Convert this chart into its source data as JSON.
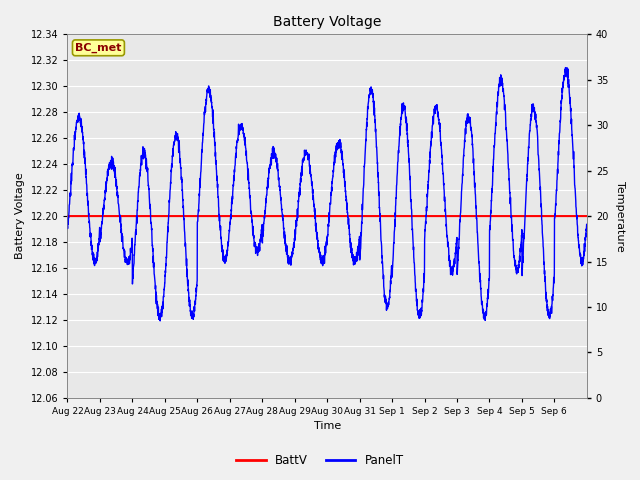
{
  "title": "Battery Voltage",
  "xlabel": "Time",
  "ylabel_left": "Battery Voltage",
  "ylabel_right": "Temperature",
  "annotation_text": "BC_met",
  "ylim_left": [
    12.06,
    12.34
  ],
  "ylim_right": [
    0,
    40
  ],
  "yticks_left": [
    12.06,
    12.08,
    12.1,
    12.12,
    12.14,
    12.16,
    12.18,
    12.2,
    12.22,
    12.24,
    12.26,
    12.28,
    12.3,
    12.32,
    12.34
  ],
  "yticks_right": [
    0,
    5,
    10,
    15,
    20,
    25,
    30,
    35,
    40
  ],
  "batt_v": 12.2,
  "bg_color": "#e8e8e8",
  "fig_bg_color": "#f0f0f0",
  "line_color_batt": "red",
  "line_color_panel": "blue",
  "legend_labels": [
    "BattV",
    "PanelT"
  ],
  "xtick_labels": [
    "Aug 22",
    "Aug 23",
    "Aug 24",
    "Aug 25",
    "Aug 26",
    "Aug 27",
    "Aug 28",
    "Aug 29",
    "Aug 30",
    "Aug 31",
    "Sep 1",
    "Sep 2",
    "Sep 3",
    "Sep 4",
    "Sep 5",
    "Sep 6"
  ],
  "annotation_bg": "#ffff99",
  "annotation_border": "#999900",
  "annotation_text_color": "#8b0000",
  "panel_temps_peaks": [
    31,
    26,
    27,
    29,
    34,
    30,
    27,
    27,
    28,
    34,
    32,
    32,
    31,
    35,
    32,
    36
  ],
  "panel_temps_troughs": [
    15,
    15,
    9,
    9,
    15,
    16,
    15,
    15,
    15,
    10,
    9,
    14,
    9,
    14,
    9,
    15
  ],
  "base_temp": 20
}
